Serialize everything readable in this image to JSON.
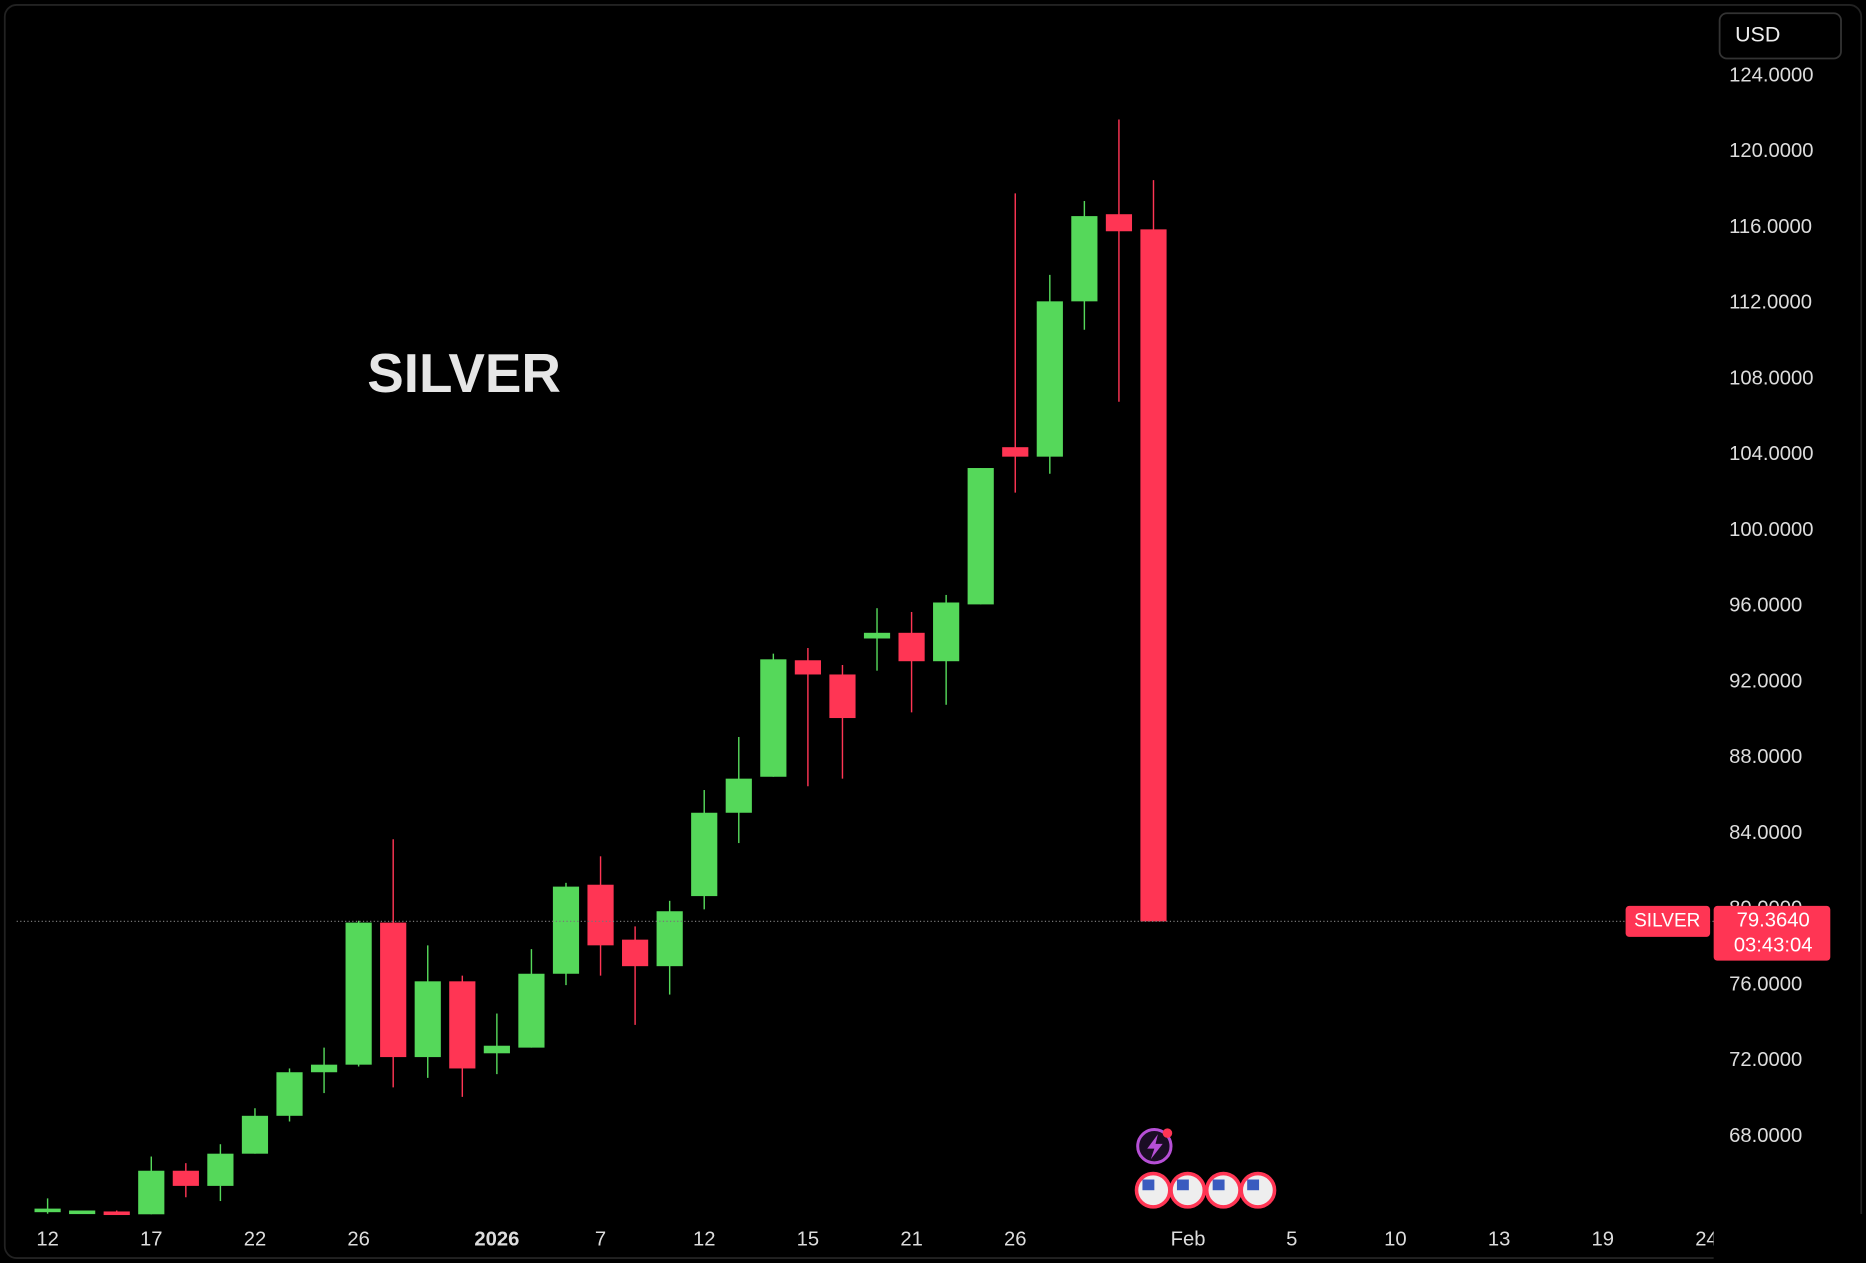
{
  "chart_data": {
    "type": "candlestick",
    "title": "SILVER",
    "currency": "USD",
    "categories": [
      "12",
      null,
      null,
      "17",
      null,
      null,
      "22",
      null,
      null,
      "26",
      null,
      null,
      null,
      "2026",
      null,
      null,
      "7",
      null,
      null,
      "12",
      null,
      null,
      "15",
      null,
      null,
      "21",
      null,
      null,
      "26",
      null,
      null,
      null,
      null,
      "Feb",
      null,
      null,
      "5",
      null,
      null,
      "10",
      null,
      null,
      "13",
      null,
      null,
      "19",
      null,
      null,
      "24"
    ],
    "open": [
      64.2,
      64.0,
      64.05,
      63.9,
      66.2,
      65.4,
      67.1,
      69.1,
      71.4,
      71.8,
      79.3,
      72.2,
      76.2,
      72.4,
      72.7,
      76.6,
      81.3,
      78.4,
      77.0,
      80.7,
      85.1,
      87.0,
      93.15,
      92.4,
      94.3,
      94.6,
      93.1,
      96.1,
      104.4,
      103.9,
      112.1,
      116.7,
      115.9,
      null,
      null,
      null,
      null,
      null,
      null,
      null,
      null,
      null,
      null,
      null,
      null,
      null,
      null,
      null,
      null
    ],
    "high": [
      64.74,
      64.1,
      64.1,
      66.95,
      66.6,
      67.6,
      69.5,
      71.6,
      72.7,
      79.4,
      83.7,
      78.1,
      76.5,
      74.5,
      77.9,
      81.4,
      82.8,
      79.1,
      80.45,
      86.3,
      89.1,
      93.5,
      93.8,
      92.9,
      95.9,
      95.7,
      96.6,
      103.3,
      117.8,
      113.5,
      117.4,
      121.7,
      118.5,
      null,
      null,
      null,
      null,
      null,
      null,
      null,
      null,
      null,
      null,
      null,
      null,
      null,
      null,
      null,
      null
    ],
    "low": [
      63.93,
      64.0,
      63.9,
      63.9,
      64.8,
      64.6,
      67.1,
      68.8,
      70.3,
      71.7,
      70.6,
      71.1,
      70.1,
      71.3,
      72.7,
      76.0,
      76.5,
      73.9,
      75.5,
      80.0,
      83.5,
      87.0,
      86.5,
      86.9,
      92.6,
      90.4,
      90.8,
      96.1,
      102.0,
      103.0,
      110.6,
      106.8,
      79.364,
      null,
      null,
      null,
      null,
      null,
      null,
      null,
      null,
      null,
      null,
      null,
      null,
      null,
      null,
      null,
      null
    ],
    "close": [
      64.2,
      64.1,
      63.95,
      66.2,
      65.4,
      67.1,
      69.1,
      71.4,
      71.8,
      79.3,
      72.2,
      76.2,
      71.6,
      72.8,
      76.6,
      81.2,
      78.1,
      77.0,
      79.9,
      85.1,
      86.9,
      93.2,
      92.4,
      90.1,
      94.6,
      93.1,
      96.2,
      103.3,
      103.9,
      112.1,
      116.6,
      115.8,
      79.364,
      null,
      null,
      null,
      null,
      null,
      null,
      null,
      null,
      null,
      null,
      null,
      null,
      null,
      null,
      null,
      null
    ],
    "up_color": "#55d85a",
    "down_color": "#ff3554",
    "ylim": [
      63.6,
      128
    ],
    "yticks": [
      {
        "value": 68,
        "label": "68.0000"
      },
      {
        "value": 72,
        "label": "72.0000"
      },
      {
        "value": 76,
        "label": "76.0000"
      },
      {
        "value": 80,
        "label": "80.0000"
      },
      {
        "value": 84,
        "label": "84.0000"
      },
      {
        "value": 88,
        "label": "88.0000"
      },
      {
        "value": 92,
        "label": "92.0000"
      },
      {
        "value": 96,
        "label": "96.0000"
      },
      {
        "value": 100,
        "label": "100.0000"
      },
      {
        "value": 104,
        "label": "104.0000"
      },
      {
        "value": 108,
        "label": "108.0000"
      },
      {
        "value": 112,
        "label": "112.0000"
      },
      {
        "value": 116,
        "label": "116.0000"
      },
      {
        "value": 120,
        "label": "120.0000"
      },
      {
        "value": 124,
        "label": "124.0000"
      }
    ],
    "last_price": {
      "symbol": "SILVER",
      "value": 79.364,
      "value_label": "79.3640",
      "countdown": "03:43:04"
    }
  }
}
